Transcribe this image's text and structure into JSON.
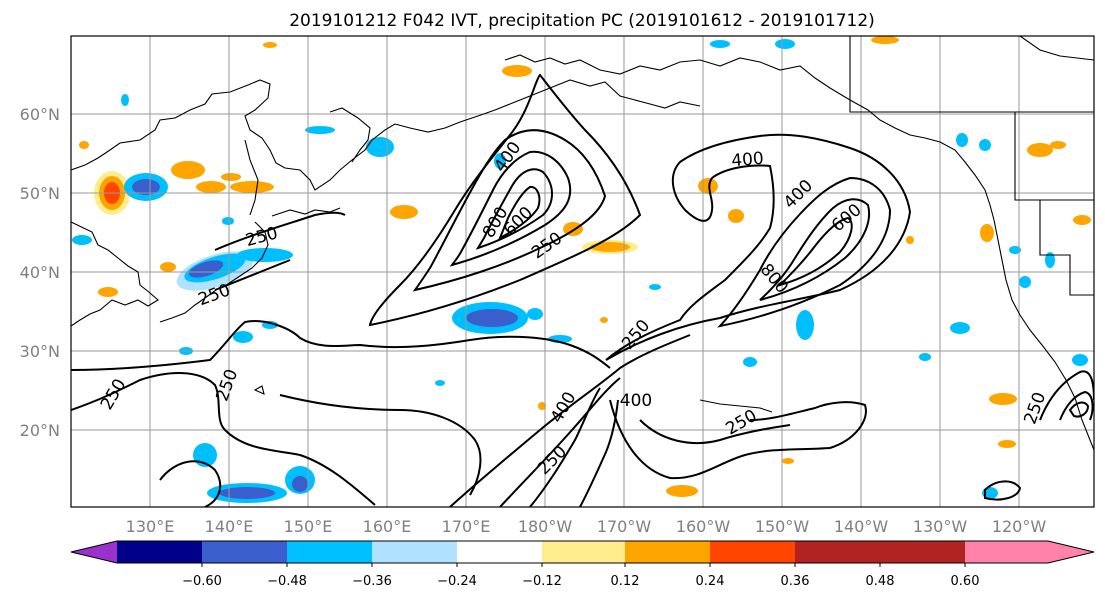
{
  "title": "2019101212 F042 IVT, precipitation PC (2019101612 - 2019101712)",
  "lat_labels": [
    "60°N",
    "50°N",
    "40°N",
    "30°N",
    "20°N"
  ],
  "lon_labels": [
    "130°E",
    "140°E",
    "150°E",
    "160°E",
    "170°E",
    "180°W",
    "170°W",
    "160°W",
    "150°W",
    "140°W",
    "130°W",
    "120°W"
  ],
  "contour_labels": [
    "400",
    "250",
    "800",
    "600",
    "250",
    "400",
    "400",
    "600",
    "800",
    "250",
    "250",
    "250",
    "250",
    "250",
    "400",
    "400",
    "250",
    "250"
  ],
  "colorbar": {
    "ticks": [
      "−0.60",
      "−0.48",
      "−0.36",
      "−0.24",
      "−0.12",
      "0.12",
      "0.24",
      "0.36",
      "0.48",
      "0.60"
    ],
    "colors": [
      "#9932CC",
      "#00008B",
      "#3A5FCD",
      "#00BFFF",
      "#B0E2FF",
      "#FFFFFF",
      "#FFEC8B",
      "#FFA500",
      "#FF4500",
      "#B22222",
      "#FF82AB"
    ]
  },
  "colors": {
    "pos_weak": "#FFEC8B",
    "pos_mid": "#FFA500",
    "pos_strong": "#FF4500",
    "neg_weak": "#B0E2FF",
    "neg_mid": "#00BFFF",
    "neg_strong": "#3A5FCD"
  }
}
